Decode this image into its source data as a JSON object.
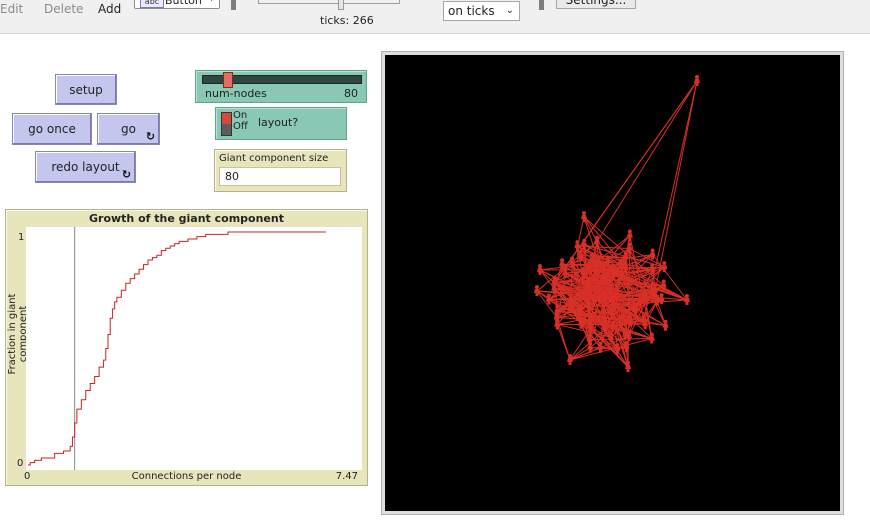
{
  "toolbar": {
    "edit_label": "Edit",
    "delete_label": "Delete",
    "add_label": "Add",
    "widget_type": "Button",
    "widget_type_icon": "abc",
    "ticks_label": "ticks: 266",
    "update_mode": "on ticks",
    "settings_label": "Settings..."
  },
  "buttons": {
    "setup": "setup",
    "go_once": "go once",
    "go": "go",
    "redo_layout": "redo layout",
    "forever_icon": "forever-arrows-icon"
  },
  "slider": {
    "name": "num-nodes",
    "value": "80",
    "fraction": 0.2
  },
  "switch": {
    "on_label": "On",
    "off_label": "Off",
    "label": "layout?",
    "state": "on"
  },
  "monitor": {
    "label": "Giant component size",
    "value": "80"
  },
  "plot": {
    "title": "Growth of the giant component",
    "xlabel": "Connections per node",
    "ylabel": "Fraction in giant component",
    "xmin": "0",
    "xmax": "7.47",
    "ymin": "0",
    "ymax": "1"
  },
  "chart_data": {
    "type": "line",
    "title": "Growth of the giant component",
    "xlabel": "Connections per node",
    "ylabel": "Fraction in giant component",
    "xlim": [
      0,
      7.47
    ],
    "ylim": [
      0,
      1
    ],
    "series": [
      {
        "name": "",
        "color": "#cc2222",
        "x": [
          0,
          0.05,
          0.15,
          0.3,
          0.6,
          0.8,
          0.95,
          1.0,
          1.05,
          1.1,
          1.2,
          1.3,
          1.4,
          1.5,
          1.6,
          1.7,
          1.75,
          1.8,
          1.85,
          1.9,
          1.95,
          2.0,
          2.1,
          2.2,
          2.3,
          2.4,
          2.5,
          2.6,
          2.7,
          2.8,
          2.9,
          3.0,
          3.1,
          3.2,
          3.3,
          3.4,
          3.6,
          3.8,
          4.0,
          4.2,
          4.5,
          5.0,
          6.0,
          6.7
        ],
        "y": [
          0,
          0.01,
          0.02,
          0.03,
          0.05,
          0.06,
          0.08,
          0.12,
          0.18,
          0.24,
          0.28,
          0.32,
          0.35,
          0.38,
          0.42,
          0.45,
          0.5,
          0.56,
          0.63,
          0.67,
          0.7,
          0.72,
          0.75,
          0.78,
          0.8,
          0.82,
          0.84,
          0.86,
          0.88,
          0.89,
          0.9,
          0.92,
          0.93,
          0.94,
          0.95,
          0.96,
          0.97,
          0.98,
          0.99,
          0.99,
          1.0,
          1.0,
          1.0,
          1.0
        ]
      }
    ],
    "vertical_line_x": 1.05
  },
  "world": {
    "background": "#000000",
    "turtle_color": "#d73027",
    "link_color": "#d73027",
    "turtle_count": 80
  }
}
